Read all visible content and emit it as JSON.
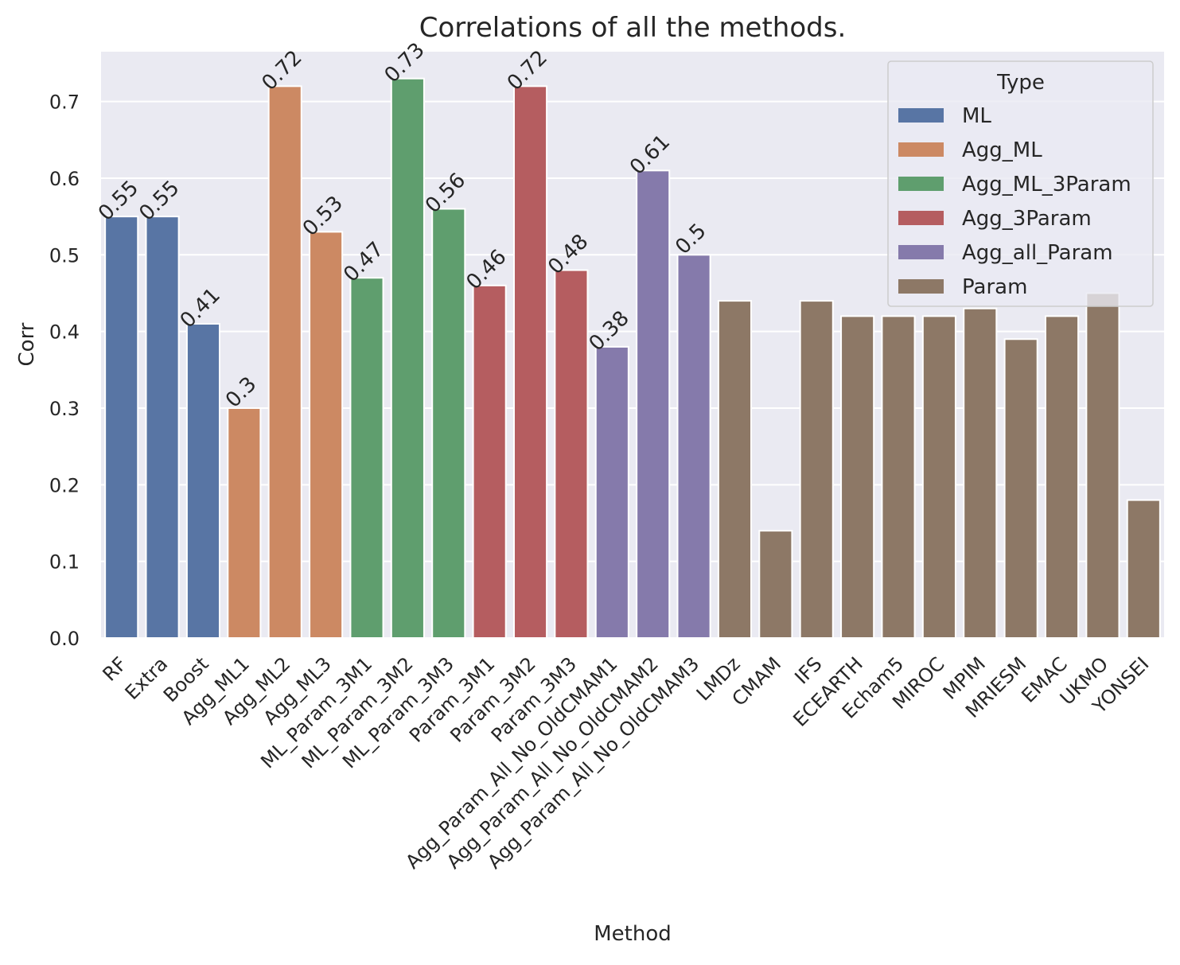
{
  "chart_data": {
    "type": "bar",
    "title": "Correlations of all the methods.",
    "xlabel": "Method",
    "ylabel": "Corr",
    "ylim": [
      0,
      0.765
    ],
    "yticks": [
      "0.0",
      "0.1",
      "0.2",
      "0.3",
      "0.4",
      "0.5",
      "0.6",
      "0.7"
    ],
    "grid": true,
    "legend": {
      "title": "Type",
      "placement": "top-right",
      "entries": [
        {
          "name": "ML",
          "color": "#5875a4"
        },
        {
          "name": "Agg_ML",
          "color": "#cc8963"
        },
        {
          "name": "Agg_ML_3Param",
          "color": "#5f9e6e"
        },
        {
          "name": "Agg_3Param",
          "color": "#b55d60"
        },
        {
          "name": "Agg_all_Param",
          "color": "#857aab"
        },
        {
          "name": "Param",
          "color": "#8d7866"
        }
      ]
    },
    "categories": [
      "RF",
      "Extra",
      "Boost",
      "Agg_ML1",
      "Agg_ML2",
      "Agg_ML3",
      "ML_Param_3M1",
      "ML_Param_3M2",
      "ML_Param_3M3",
      "Param_3M1",
      "Param_3M2",
      "Param_3M3",
      "Agg_Param_All_No_OldCMAM1",
      "Agg_Param_All_No_OldCMAM2",
      "Agg_Param_All_No_OldCMAM3",
      "LMDz",
      "CMAM",
      "IFS",
      "ECEARTH",
      "Echam5",
      "MIROC",
      "MPIM",
      "MRIESM",
      "EMAC",
      "UKMO",
      "YONSEI"
    ],
    "values": [
      0.55,
      0.55,
      0.41,
      0.3,
      0.72,
      0.53,
      0.47,
      0.73,
      0.56,
      0.46,
      0.72,
      0.48,
      0.38,
      0.61,
      0.5,
      0.44,
      0.14,
      0.44,
      0.42,
      0.42,
      0.42,
      0.43,
      0.39,
      0.42,
      0.45,
      0.18
    ],
    "types": [
      "ML",
      "ML",
      "ML",
      "Agg_ML",
      "Agg_ML",
      "Agg_ML",
      "Agg_ML_3Param",
      "Agg_ML_3Param",
      "Agg_ML_3Param",
      "Agg_3Param",
      "Agg_3Param",
      "Agg_3Param",
      "Agg_all_Param",
      "Agg_all_Param",
      "Agg_all_Param",
      "Param",
      "Param",
      "Param",
      "Param",
      "Param",
      "Param",
      "Param",
      "Param",
      "Param",
      "Param",
      "Param"
    ],
    "data_labels": [
      "0.55",
      "0.55",
      "0.41",
      "0.3",
      "0.72",
      "0.53",
      "0.47",
      "0.73",
      "0.56",
      "0.46",
      "0.72",
      "0.48",
      "0.38",
      "0.61",
      "0.5",
      "",
      "",
      "",
      "",
      "",
      "",
      "",
      "",
      "",
      "",
      ""
    ]
  }
}
